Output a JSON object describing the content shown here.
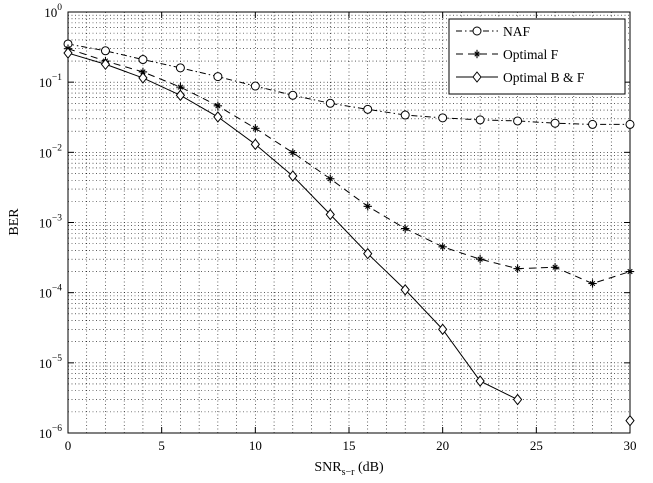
{
  "chart_data": {
    "type": "line",
    "xlabel": {
      "base": "SNR",
      "sub": "s−r",
      "suffix": " (dB)"
    },
    "ylabel": "BER",
    "xlim": [
      0,
      30
    ],
    "ylim": [
      1e-06,
      1
    ],
    "yscale": "log",
    "grid": true,
    "legend_position": "top-right",
    "x_ticks": [
      0,
      5,
      10,
      15,
      20,
      25,
      30
    ],
    "x_tick_labels": [
      "0",
      "5",
      "10",
      "15",
      "20",
      "25",
      "30"
    ],
    "y_ticks": [
      {
        "value": 1,
        "base": "10",
        "exp": "0"
      },
      {
        "value": 0.1,
        "base": "10",
        "exp": "−1"
      },
      {
        "value": 0.01,
        "base": "10",
        "exp": "−2"
      },
      {
        "value": 0.001,
        "base": "10",
        "exp": "−3"
      },
      {
        "value": 0.0001,
        "base": "10",
        "exp": "−4"
      },
      {
        "value": 1e-05,
        "base": "10",
        "exp": "−5"
      },
      {
        "value": 1e-06,
        "base": "10",
        "exp": "−6"
      }
    ],
    "series": [
      {
        "name": "NAF",
        "line_style": "dashdot",
        "marker": "circle",
        "color": "#000000",
        "x": [
          0,
          2,
          4,
          6,
          8,
          10,
          12,
          14,
          16,
          18,
          20,
          22,
          24,
          26,
          28,
          30
        ],
        "y": [
          0.35,
          0.28,
          0.21,
          0.16,
          0.12,
          0.088,
          0.065,
          0.05,
          0.041,
          0.034,
          0.031,
          0.029,
          0.028,
          0.026,
          0.025,
          0.025
        ]
      },
      {
        "name": "Optimal F",
        "line_style": "dashed",
        "marker": "star",
        "color": "#000000",
        "x": [
          0,
          2,
          4,
          6,
          8,
          10,
          12,
          14,
          16,
          18,
          20,
          22,
          24,
          26,
          28,
          30
        ],
        "y": [
          0.3,
          0.2,
          0.14,
          0.085,
          0.046,
          0.022,
          0.0099,
          0.0042,
          0.0017,
          0.00082,
          0.00045,
          0.0003,
          0.00022,
          0.00023,
          0.000135,
          0.0002
        ]
      },
      {
        "name": "Optimal B & F",
        "line_style": "solid",
        "marker": "diamond",
        "color": "#000000",
        "x": [
          0,
          2,
          4,
          6,
          8,
          10,
          12,
          14,
          16,
          18,
          20,
          22,
          24,
          30
        ],
        "y": [
          0.26,
          0.18,
          0.115,
          0.065,
          0.032,
          0.013,
          0.0046,
          0.0013,
          0.00036,
          0.00011,
          3e-05,
          5.5e-06,
          3e-06,
          1.5e-06
        ],
        "line_through_points": 13
      }
    ]
  }
}
